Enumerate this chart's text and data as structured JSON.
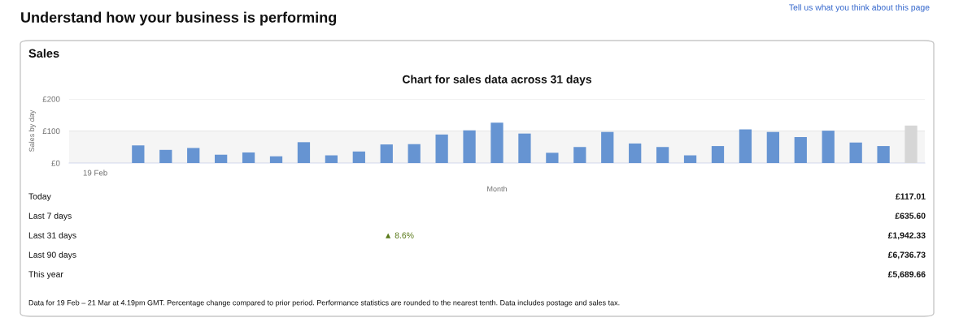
{
  "chart_data": {
    "type": "bar",
    "title": "Chart for sales data across 31 days",
    "ylabel": "Sales by day",
    "xlabel": "Month",
    "categories": [
      "19 Feb",
      null,
      null,
      null,
      null,
      null,
      null,
      null,
      null,
      null,
      null,
      null,
      null,
      null,
      null,
      null,
      null,
      null,
      null,
      null,
      null,
      null,
      null,
      null,
      null,
      null,
      null,
      null,
      null,
      null,
      null
    ],
    "values": [
      null,
      null,
      55,
      41,
      47,
      26,
      33,
      21,
      65,
      24,
      36,
      58,
      59,
      89,
      102,
      126,
      92,
      32,
      50,
      97,
      61,
      50,
      24,
      53,
      105,
      97,
      81,
      101,
      64,
      53,
      117
    ],
    "colors": [
      "#6694d2",
      "#6694d2",
      "#6694d2",
      "#6694d2",
      "#6694d2",
      "#6694d2",
      "#6694d2",
      "#6694d2",
      "#6694d2",
      "#6694d2",
      "#6694d2",
      "#6694d2",
      "#6694d2",
      "#6694d2",
      "#6694d2",
      "#6694d2",
      "#6694d2",
      "#6694d2",
      "#6694d2",
      "#6694d2",
      "#6694d2",
      "#6694d2",
      "#6694d2",
      "#6694d2",
      "#6694d2",
      "#6694d2",
      "#6694d2",
      "#6694d2",
      "#6694d2",
      "#6694d2",
      "#d6d6d6"
    ],
    "ylim": [
      0,
      200
    ],
    "yticks": [
      {
        "value": 0,
        "label": "£0"
      },
      {
        "value": 100,
        "label": "£100"
      },
      {
        "value": 200,
        "label": "£200"
      }
    ],
    "grid": "y",
    "bands": [
      {
        "axis": "y",
        "from": 0,
        "to": 100,
        "color": "#f5f5f5"
      }
    ],
    "annotations": [
      "Understand how your business is performing",
      "Tell us what you think about this page",
      "Sales",
      "Today",
      "£117.01",
      "Last 7 days",
      "£635.60",
      "Last 31 days",
      "▲ 8.6%",
      "£1,942.33",
      "Last 90 days",
      "£6,736.73",
      "This year",
      "£5,689.66",
      "Data for 19 Feb – 21 Mar at 4.19pm GMT. Percentage change compared to prior period. Performance statistics are rounded to the nearest tenth. Data includes postage and sales tax."
    ]
  }
}
